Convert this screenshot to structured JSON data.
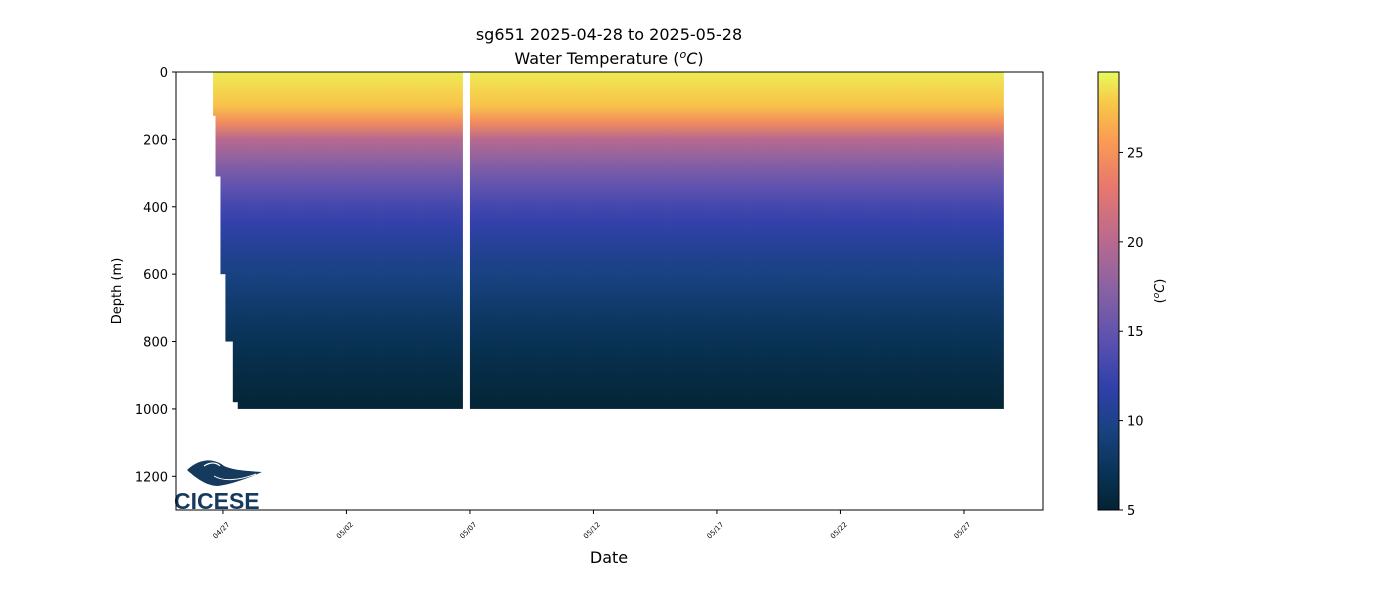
{
  "chart_data": {
    "type": "heatmap",
    "title": "sg651 2025-04-28 to 2025-05-28",
    "subtitle": "Water Temperature (",
    "subtitle_unit": "o",
    "subtitle_unit_letter": "C",
    "subtitle_close": ")",
    "xlabel": "Date",
    "ylabel": "Depth (m)",
    "ylim": [
      1300,
      0
    ],
    "yticks": [
      0,
      200,
      400,
      600,
      800,
      1000,
      1200
    ],
    "xticks": [
      "04/27",
      "05/02",
      "05/07",
      "05/12",
      "05/17",
      "05/22",
      "05/27"
    ],
    "xtick_days": [
      0,
      5,
      10,
      15,
      20,
      25,
      30
    ],
    "xlim_days": [
      -1.9,
      33.2
    ],
    "colorbar": {
      "label_open": "(",
      "label_unit": "o",
      "label_letter": "C",
      "label_close": ")",
      "range": [
        5,
        29.5
      ],
      "ticks": [
        5,
        10,
        15,
        20,
        25
      ]
    },
    "coverage": {
      "start_day": -0.4,
      "end_day": 31.6,
      "gap": [
        9.6,
        9.9
      ],
      "max_depth_m": 1000,
      "early_max_depth_m": [
        [
          -0.4,
          130
        ],
        [
          -0.2,
          310
        ],
        [
          0.0,
          600
        ],
        [
          0.3,
          800
        ],
        [
          0.5,
          980
        ],
        [
          0.8,
          1000
        ]
      ]
    },
    "temperature_profile": [
      {
        "depth_m": 0,
        "temp_c": 29
      },
      {
        "depth_m": 100,
        "temp_c": 27.5
      },
      {
        "depth_m": 150,
        "temp_c": 24.5
      },
      {
        "depth_m": 200,
        "temp_c": 20
      },
      {
        "depth_m": 300,
        "temp_c": 16
      },
      {
        "depth_m": 400,
        "temp_c": 13
      },
      {
        "depth_m": 500,
        "temp_c": 11
      },
      {
        "depth_m": 600,
        "temp_c": 9.5
      },
      {
        "depth_m": 700,
        "temp_c": 8.2
      },
      {
        "depth_m": 800,
        "temp_c": 7
      },
      {
        "depth_m": 900,
        "temp_c": 6
      },
      {
        "depth_m": 1000,
        "temp_c": 5.2
      }
    ],
    "logo_text": "CICESE"
  }
}
